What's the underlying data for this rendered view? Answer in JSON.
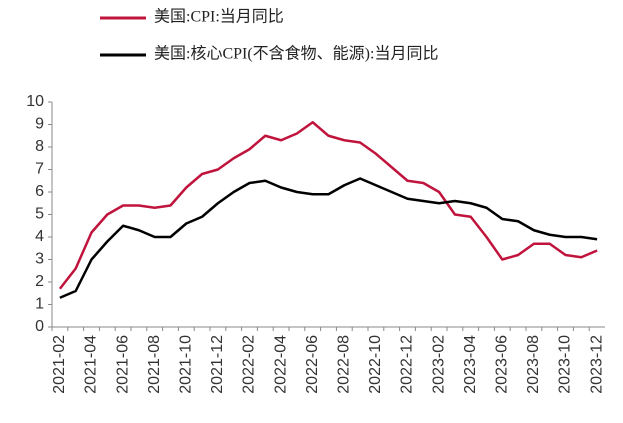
{
  "chart_data": {
    "type": "line",
    "categories": [
      "2021-02",
      null,
      "2021-04",
      null,
      "2021-06",
      null,
      "2021-08",
      null,
      "2021-10",
      null,
      "2021-12",
      null,
      "2022-02",
      null,
      "2022-04",
      null,
      "2022-06",
      null,
      "2022-08",
      null,
      "2022-10",
      null,
      "2022-12",
      null,
      "2023-02",
      null,
      "2023-04",
      null,
      "2023-06",
      null,
      "2023-08",
      null,
      "2023-10",
      null,
      "2023-12"
    ],
    "series": [
      {
        "name": "美国:CPI:当月同比",
        "color": "#c0143c",
        "values": [
          1.7,
          2.6,
          4.2,
          5.0,
          5.4,
          5.4,
          5.3,
          5.4,
          6.2,
          6.8,
          7.0,
          7.5,
          7.9,
          8.5,
          8.3,
          8.6,
          9.1,
          8.5,
          8.3,
          8.2,
          7.7,
          7.1,
          6.5,
          6.4,
          6.0,
          5.0,
          4.9,
          4.0,
          3.0,
          3.2,
          3.7,
          3.7,
          3.2,
          3.1,
          3.4
        ]
      },
      {
        "name": "美国:核心CPI(不含食物、能源):当月同比",
        "color": "#000000",
        "values": [
          1.3,
          1.6,
          3.0,
          3.8,
          4.5,
          4.3,
          4.0,
          4.0,
          4.6,
          4.9,
          5.5,
          6.0,
          6.4,
          6.5,
          6.2,
          6.0,
          5.9,
          5.9,
          6.3,
          6.6,
          6.3,
          6.0,
          5.7,
          5.6,
          5.5,
          5.6,
          5.5,
          5.3,
          4.8,
          4.7,
          4.3,
          4.1,
          4.0,
          4.0,
          3.9
        ]
      }
    ],
    "ylim": [
      0,
      10
    ],
    "yticks": [
      0,
      1,
      2,
      3,
      4,
      5,
      6,
      7,
      8,
      9,
      10
    ],
    "grid": false,
    "legend": "top"
  }
}
